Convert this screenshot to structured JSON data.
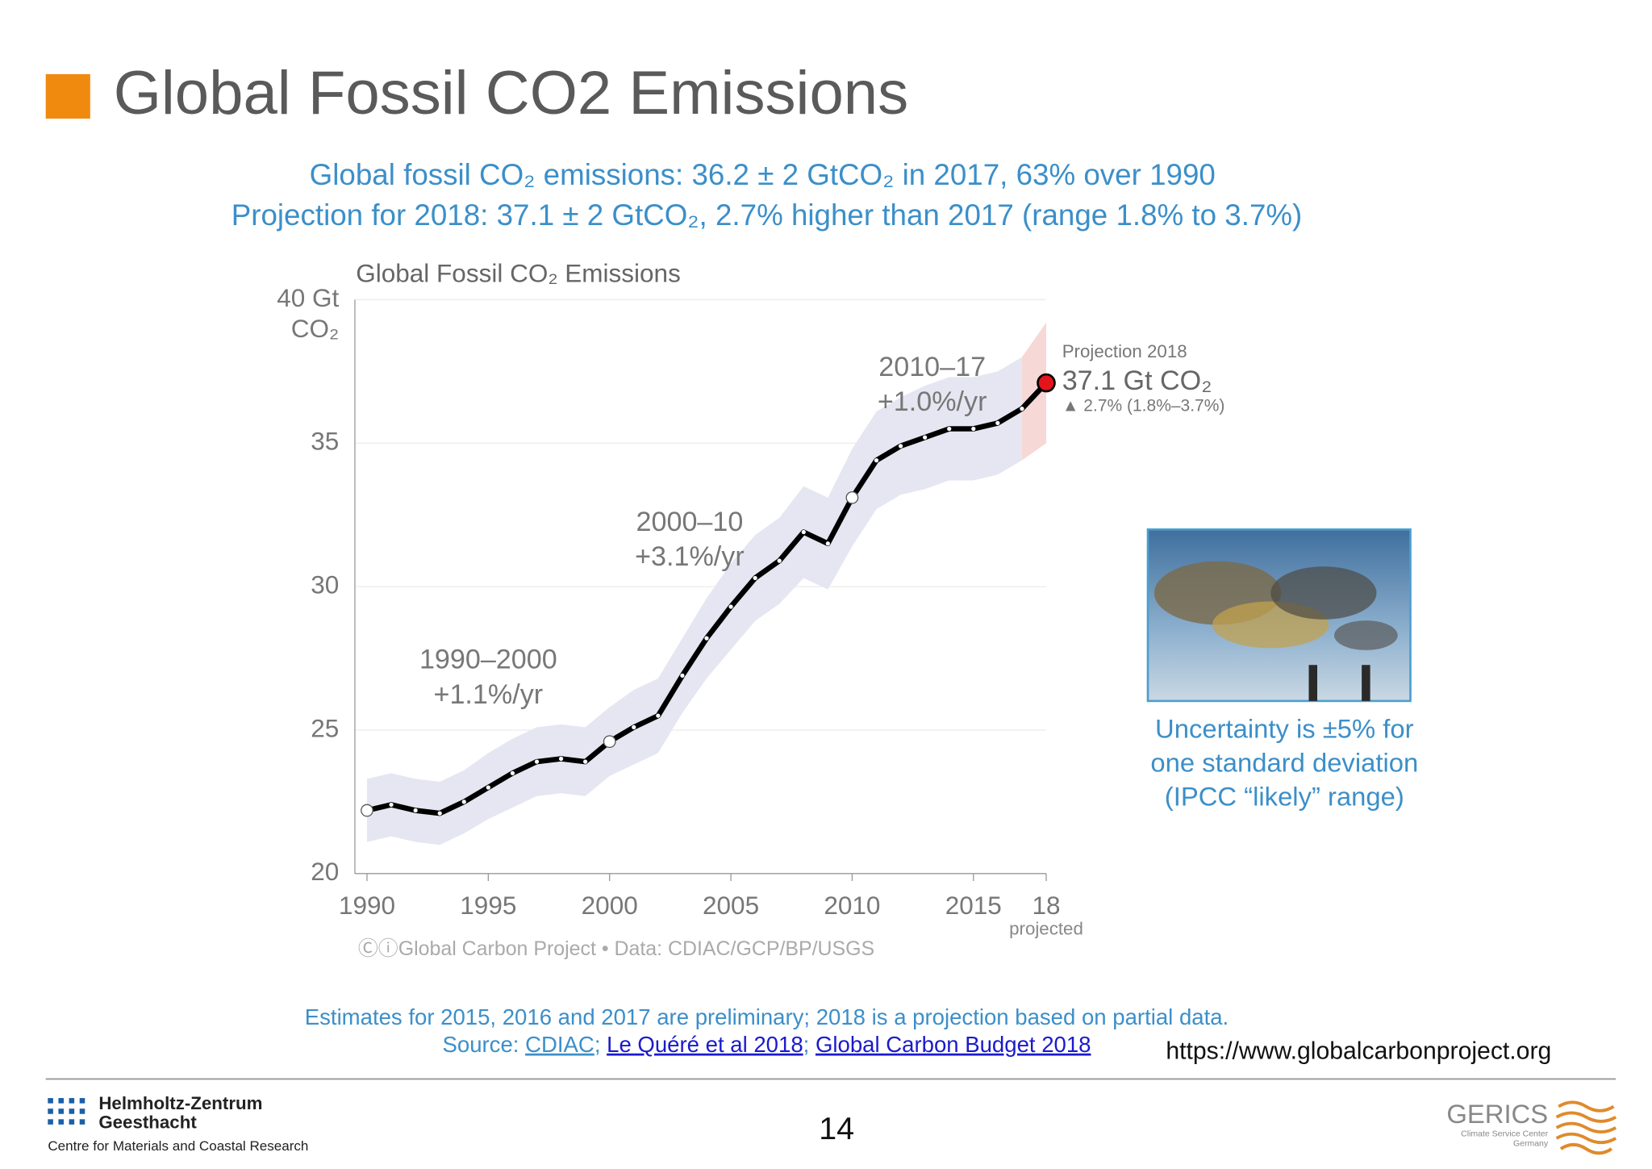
{
  "title": "Global Fossil CO2 Emissions",
  "subtitle": [
    "Global fossil CO₂ emissions: 36.2 ± 2 GtCO₂ in 2017, 63% over 1990",
    "Projection for 2018: 37.1 ± 2 GtCO₂, 2.7% higher than 2017 (range 1.8% to 3.7%)"
  ],
  "chart_data": {
    "type": "line",
    "title": "Global Fossil CO₂ Emissions",
    "x": [
      1990,
      1991,
      1992,
      1993,
      1994,
      1995,
      1996,
      1997,
      1998,
      1999,
      2000,
      2001,
      2002,
      2003,
      2004,
      2005,
      2006,
      2007,
      2008,
      2009,
      2010,
      2011,
      2012,
      2013,
      2014,
      2015,
      2016,
      2017,
      2018
    ],
    "series": [
      {
        "name": "Emissions",
        "color": "#000000",
        "values": [
          22.2,
          22.4,
          22.2,
          22.1,
          22.5,
          23.0,
          23.5,
          23.9,
          24.0,
          23.9,
          24.6,
          25.1,
          25.5,
          26.9,
          28.2,
          29.3,
          30.3,
          30.9,
          31.9,
          31.5,
          33.1,
          34.4,
          34.9,
          35.2,
          35.5,
          35.5,
          35.7,
          36.2,
          37.1
        ],
        "lower": [
          21.1,
          21.3,
          21.1,
          21.0,
          21.4,
          21.9,
          22.3,
          22.7,
          22.8,
          22.7,
          23.4,
          23.8,
          24.2,
          25.6,
          26.8,
          27.8,
          28.8,
          29.4,
          30.3,
          29.9,
          31.4,
          32.7,
          33.2,
          33.4,
          33.7,
          33.7,
          33.9,
          34.4,
          35.0
        ],
        "upper": [
          23.3,
          23.5,
          23.3,
          23.2,
          23.6,
          24.2,
          24.7,
          25.1,
          25.2,
          25.1,
          25.8,
          26.4,
          26.8,
          28.2,
          29.6,
          30.8,
          31.8,
          32.4,
          33.5,
          33.1,
          34.8,
          36.1,
          36.6,
          37.0,
          37.3,
          37.3,
          37.5,
          38.0,
          39.2
        ]
      }
    ],
    "band_color": "#e6e6f2",
    "projection_color": "#f6d8d6",
    "projection_marker_color": "#e3141b",
    "xlim": [
      1989.5,
      2018
    ],
    "xticks": [
      1990,
      1995,
      2000,
      2005,
      2010,
      2015,
      {
        "value": 2018,
        "label": "18"
      }
    ],
    "xnote": "projected",
    "ylim": [
      20,
      40
    ],
    "yticks": [
      20,
      25,
      30,
      35,
      {
        "value": 40,
        "label": "40 Gt"
      }
    ],
    "y_unit": "CO₂",
    "grid": true,
    "annotations": [
      {
        "x": 1995,
        "y": 27.4,
        "lines": [
          "1990–2000",
          "+1.1%/yr"
        ]
      },
      {
        "x": 2003.3,
        "y": 32.2,
        "lines": [
          "2000–10",
          "+3.1%/yr"
        ]
      },
      {
        "x": 2013.3,
        "y": 37.6,
        "lines": [
          "2010–17",
          "+1.0%/yr"
        ]
      }
    ],
    "projection_labels": [
      "Projection 2018",
      "37.1 Gt CO₂",
      "▲ 2.7% (1.8%–3.7%)"
    ],
    "credit": "ⒸⓘGlobal Carbon Project  •  Data: CDIAC/GCP/BP/USGS"
  },
  "caption": [
    "Uncertainty is ±5% for",
    "one standard deviation",
    "(IPCC “likely” range)"
  ],
  "note": "Estimates for 2015, 2016 and 2017 are preliminary; 2018 is a projection based on partial data.",
  "source": {
    "prefix": "Source: ",
    "separator": "; ",
    "links": [
      "CDIAC",
      "Le Quéré et al 2018",
      "Global Carbon Budget 2018"
    ]
  },
  "url": "https://www.globalcarbonproject.org",
  "page_number": "14",
  "footer_left": [
    "Helmholtz-Zentrum",
    "Geesthacht",
    "Centre for Materials and Coastal Research"
  ],
  "footer_right": [
    "GERICS",
    "Climate Service Center",
    "Germany"
  ]
}
